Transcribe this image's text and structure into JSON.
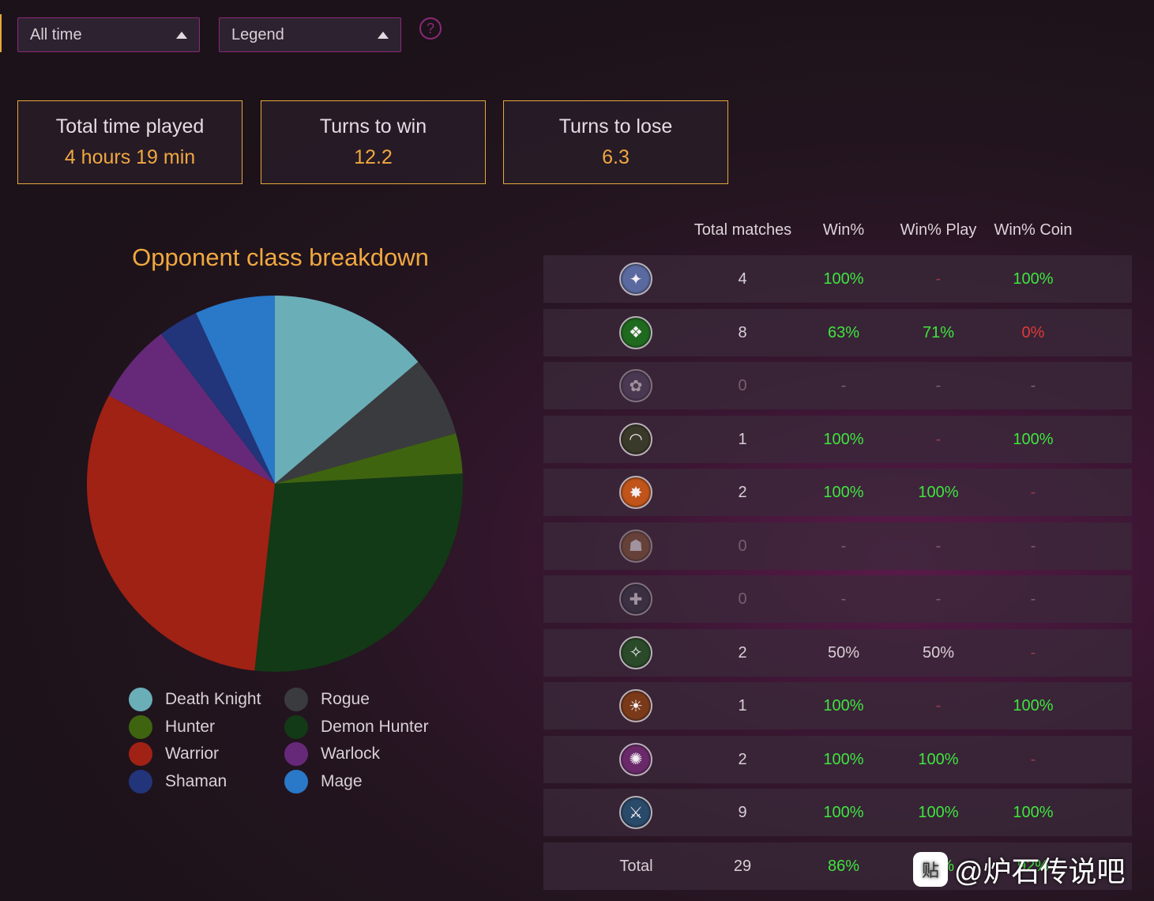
{
  "filters": {
    "time": "All time",
    "legend": "Legend",
    "help_glyph": "?"
  },
  "stats": [
    {
      "title": "Total time played",
      "value": "4 hours 19 min"
    },
    {
      "title": "Turns to win",
      "value": "12.2"
    },
    {
      "title": "Turns to lose",
      "value": "6.3"
    }
  ],
  "chart_data": {
    "type": "pie",
    "title": "Opponent class breakdown",
    "categories": [
      "Death Knight",
      "Rogue",
      "Hunter",
      "Demon Hunter",
      "Warrior",
      "Warlock",
      "Shaman",
      "Mage"
    ],
    "values": [
      4,
      2,
      1,
      8,
      9,
      2,
      1,
      2
    ],
    "colors": [
      "#6aaeb8",
      "#3a3b3f",
      "#3f6410",
      "#123a16",
      "#a02214",
      "#66297a",
      "#22347a",
      "#2a78c8"
    ],
    "legend_placement": "bottom"
  },
  "legend": [
    {
      "label": "Death Knight",
      "color": "#6aaeb8"
    },
    {
      "label": "Rogue",
      "color": "#3a3b3f"
    },
    {
      "label": "Hunter",
      "color": "#3f6410"
    },
    {
      "label": "Demon Hunter",
      "color": "#123a16"
    },
    {
      "label": "Warrior",
      "color": "#a02214"
    },
    {
      "label": "Warlock",
      "color": "#66297a"
    },
    {
      "label": "Shaman",
      "color": "#22347a"
    },
    {
      "label": "Mage",
      "color": "#2a78c8"
    }
  ],
  "table": {
    "headers": {
      "total": "Total matches",
      "win": "Win%",
      "play": "Win% Play",
      "coin": "Win% Coin"
    },
    "rows": [
      {
        "icon": "death-knight-icon",
        "glyph": "✦",
        "icon_color": "#5a6aa0",
        "total": "4",
        "win": "100%",
        "play": "-",
        "coin": "100%"
      },
      {
        "icon": "demon-hunter-icon",
        "glyph": "❖",
        "icon_color": "#1f6a1f",
        "total": "8",
        "win": "63%",
        "play": "71%",
        "coin": "0%"
      },
      {
        "icon": "druid-icon",
        "glyph": "✿",
        "icon_color": "#5a4a6a",
        "total": "0",
        "win": "-",
        "play": "-",
        "coin": "-"
      },
      {
        "icon": "hunter-icon",
        "glyph": "◠",
        "icon_color": "#3a3a2a",
        "total": "1",
        "win": "100%",
        "play": "-",
        "coin": "100%"
      },
      {
        "icon": "mage-icon",
        "glyph": "✸",
        "icon_color": "#c0541a",
        "total": "2",
        "win": "100%",
        "play": "100%",
        "coin": "-"
      },
      {
        "icon": "paladin-icon",
        "glyph": "☗",
        "icon_color": "#8a5a3a",
        "total": "0",
        "win": "-",
        "play": "-",
        "coin": "-"
      },
      {
        "icon": "priest-icon",
        "glyph": "✚",
        "icon_color": "#3a3a4a",
        "total": "0",
        "win": "-",
        "play": "-",
        "coin": "-"
      },
      {
        "icon": "rogue-icon",
        "glyph": "✧",
        "icon_color": "#2a4a2a",
        "total": "2",
        "win": "50%",
        "play": "50%",
        "coin": "-"
      },
      {
        "icon": "shaman-icon",
        "glyph": "☀",
        "icon_color": "#7a3a1a",
        "total": "1",
        "win": "100%",
        "play": "-",
        "coin": "100%"
      },
      {
        "icon": "warlock-icon",
        "glyph": "✺",
        "icon_color": "#6a2a6a",
        "total": "2",
        "win": "100%",
        "play": "100%",
        "coin": "-"
      },
      {
        "icon": "warrior-icon",
        "glyph": "⚔",
        "icon_color": "#2a4a6a",
        "total": "9",
        "win": "100%",
        "play": "100%",
        "coin": "100%"
      }
    ],
    "total_row": {
      "label": "Total",
      "total": "29",
      "win": "86%",
      "play": "86%",
      "coin": "92%"
    }
  },
  "watermark": {
    "logo_glyph": "贴",
    "text": "@炉石传说吧"
  }
}
